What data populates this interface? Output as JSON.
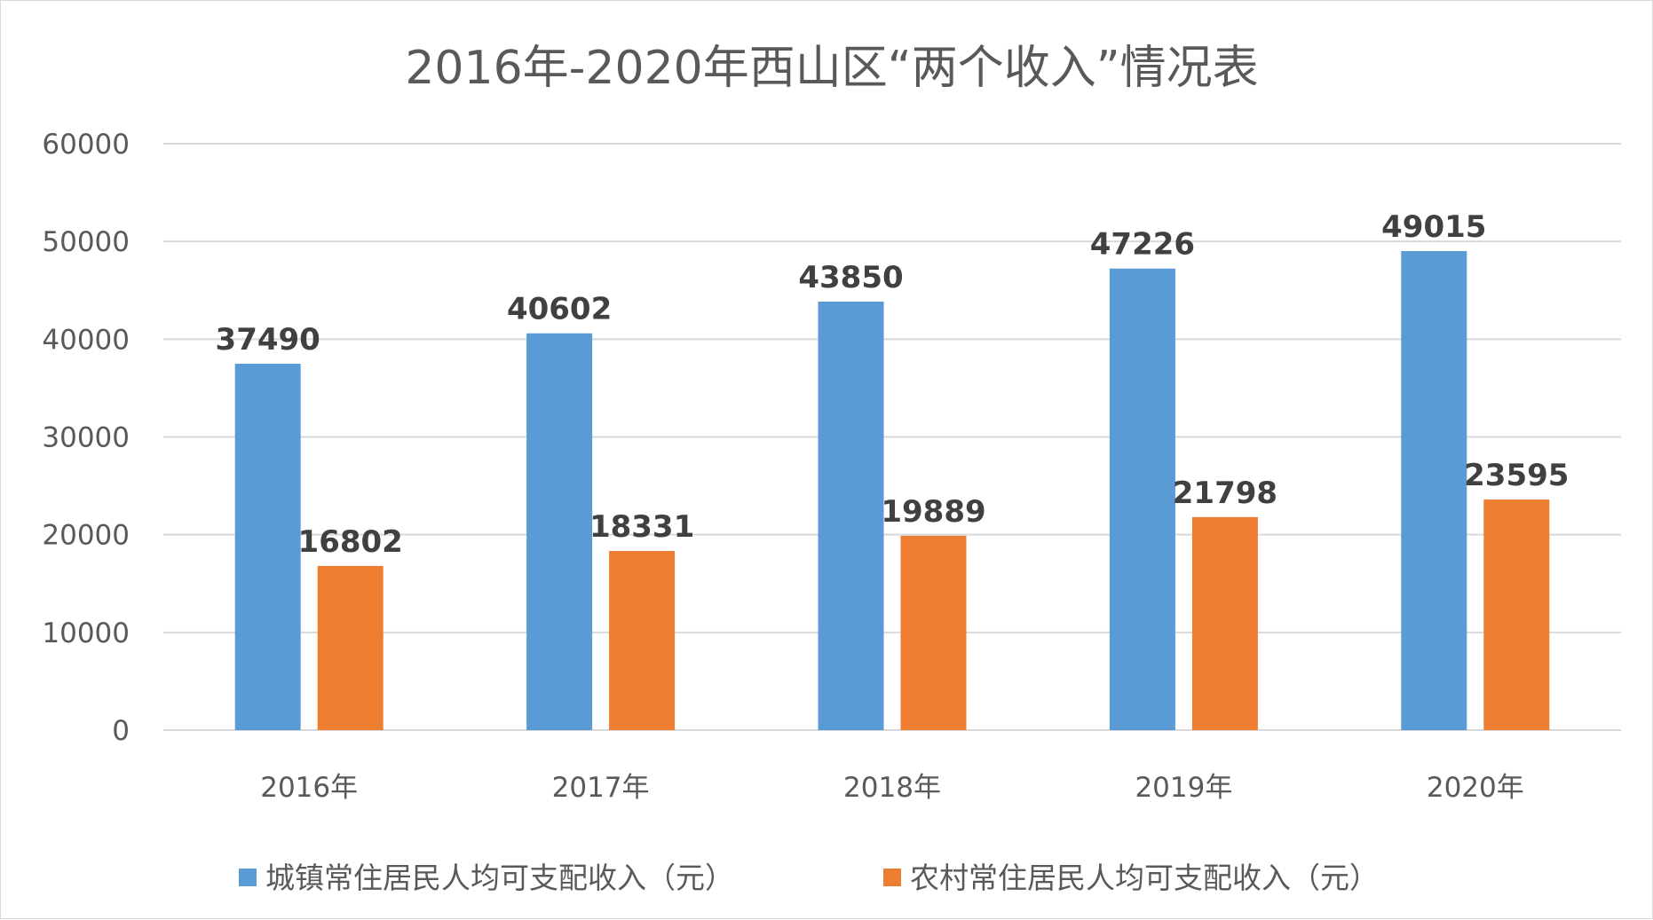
{
  "chart_data": {
    "type": "bar",
    "title": "2016年-2020年西山区“两个收入”情况表",
    "categories": [
      "2016年",
      "2017年",
      "2018年",
      "2019年",
      "2020年"
    ],
    "series": [
      {
        "name": "城镇常住居民人均可支配收入（元）",
        "color": "#5b9bd5",
        "values": [
          37490,
          40602,
          43850,
          47226,
          49015
        ]
      },
      {
        "name": "农村常住居民人均可支配收入（元）",
        "color": "#ed7d31",
        "values": [
          16802,
          18331,
          19889,
          21798,
          23595
        ]
      }
    ],
    "y_ticks": [
      "0",
      "10000",
      "20000",
      "30000",
      "40000",
      "50000",
      "60000"
    ],
    "ylim": [
      0,
      60000
    ],
    "grid": true,
    "legend_position": "bottom",
    "data_labels": true
  }
}
